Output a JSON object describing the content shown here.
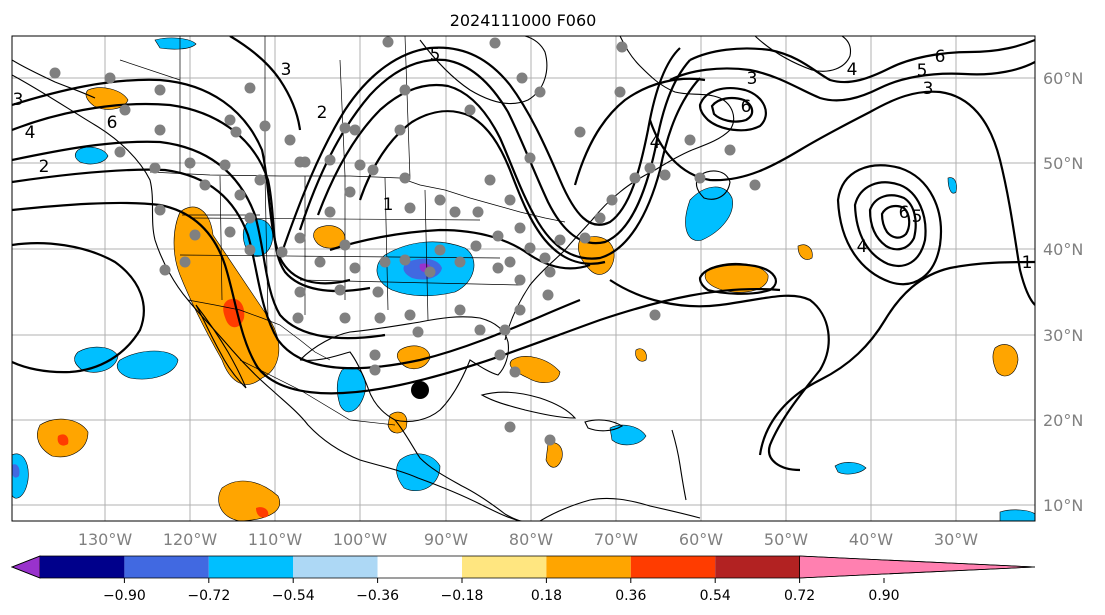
{
  "title": "2024111000 F060",
  "lon_labels": [
    "130°W",
    "120°W",
    "110°W",
    "100°W",
    "90°W",
    "80°W",
    "70°W",
    "60°W",
    "50°W",
    "40°W",
    "30°W"
  ],
  "lat_labels": [
    "60°N",
    "50°N",
    "40°N",
    "30°N",
    "20°N",
    "10°N"
  ],
  "colorbar": {
    "ticks": [
      "−0.90",
      "−0.72",
      "−0.54",
      "−0.36",
      "−0.18",
      "0.18",
      "0.36",
      "0.54",
      "0.72",
      "0.90"
    ],
    "colors": [
      "#9932cc",
      "#00008b",
      "#4169e1",
      "#00bfff",
      "#add8f5",
      "#ffffff",
      "#ffe680",
      "#ffa500",
      "#ff3c00",
      "#b22222",
      "#ff80b0"
    ]
  },
  "contour_labels": [
    "3",
    "2",
    "1",
    "4",
    "6",
    "5",
    "3",
    "6",
    "5",
    "6",
    "3",
    "4",
    "6",
    "5",
    "4",
    "2",
    "1",
    "4",
    "3"
  ],
  "colors": {
    "station_marker": "#808080",
    "storm_marker": "#000000",
    "gridline": "#b0b0b0",
    "positive_fill": "#ffa500",
    "negative_fill": "#00bfff"
  }
}
